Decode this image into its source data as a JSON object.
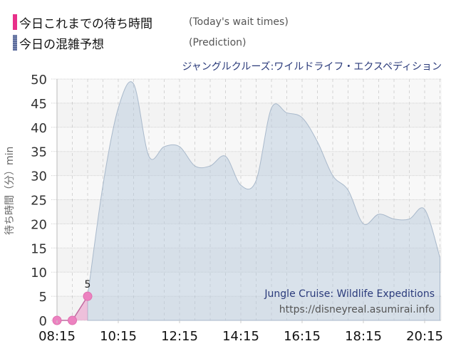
{
  "legend": {
    "actual": {
      "label_ja": "今日これまでの待ち時間",
      "label_en": "(Today's wait times)",
      "color": "#e8308a"
    },
    "prediction": {
      "label_ja": "今日の混雑予想",
      "label_en": "(Prediction)",
      "color": "#5a6a9a"
    }
  },
  "attraction_title_ja": "ジャングルクルーズ:ワイルドライフ・エクスペディション",
  "y_axis_label": "待ち時間（分）min",
  "watermark": {
    "name_en": "Jungle Cruise: Wildlife Expeditions",
    "url": "https://disneyreal.asumirai.info"
  },
  "chart_data": {
    "type": "area",
    "title": "ジャングルクルーズ:ワイルドライフ・エクスペディション",
    "xlabel": "",
    "ylabel": "待ち時間（分）min",
    "ylim": [
      0,
      50
    ],
    "y_ticks": [
      0,
      5,
      10,
      15,
      20,
      25,
      30,
      35,
      40,
      45,
      50
    ],
    "x_ticks": [
      "08:15",
      "10:15",
      "12:15",
      "14:15",
      "16:15",
      "18:15",
      "20:15"
    ],
    "grid": true,
    "legend_position": "top-left",
    "series": [
      {
        "name": "今日これまでの待ち時間 (Today's wait times)",
        "type": "line",
        "color": "#e8308a",
        "x": [
          "08:15",
          "08:45",
          "09:15"
        ],
        "values": [
          0,
          0,
          5
        ],
        "data_labels": {
          "09:15": "5"
        }
      },
      {
        "name": "今日の混雑予想 (Prediction)",
        "type": "area",
        "color": "#5a6a9a",
        "x": [
          "09:15",
          "09:45",
          "10:15",
          "10:45",
          "11:15",
          "11:45",
          "12:15",
          "12:45",
          "13:15",
          "13:45",
          "14:15",
          "14:45",
          "15:15",
          "15:45",
          "16:15",
          "16:45",
          "17:15",
          "17:45",
          "18:15",
          "18:45",
          "19:15",
          "19:45",
          "20:15",
          "20:45"
        ],
        "values": [
          5,
          28,
          44,
          49,
          34,
          36,
          36,
          32,
          32,
          34,
          28,
          29,
          44,
          43,
          42,
          37,
          30,
          27,
          20,
          22,
          21,
          21,
          23,
          13
        ]
      }
    ]
  }
}
